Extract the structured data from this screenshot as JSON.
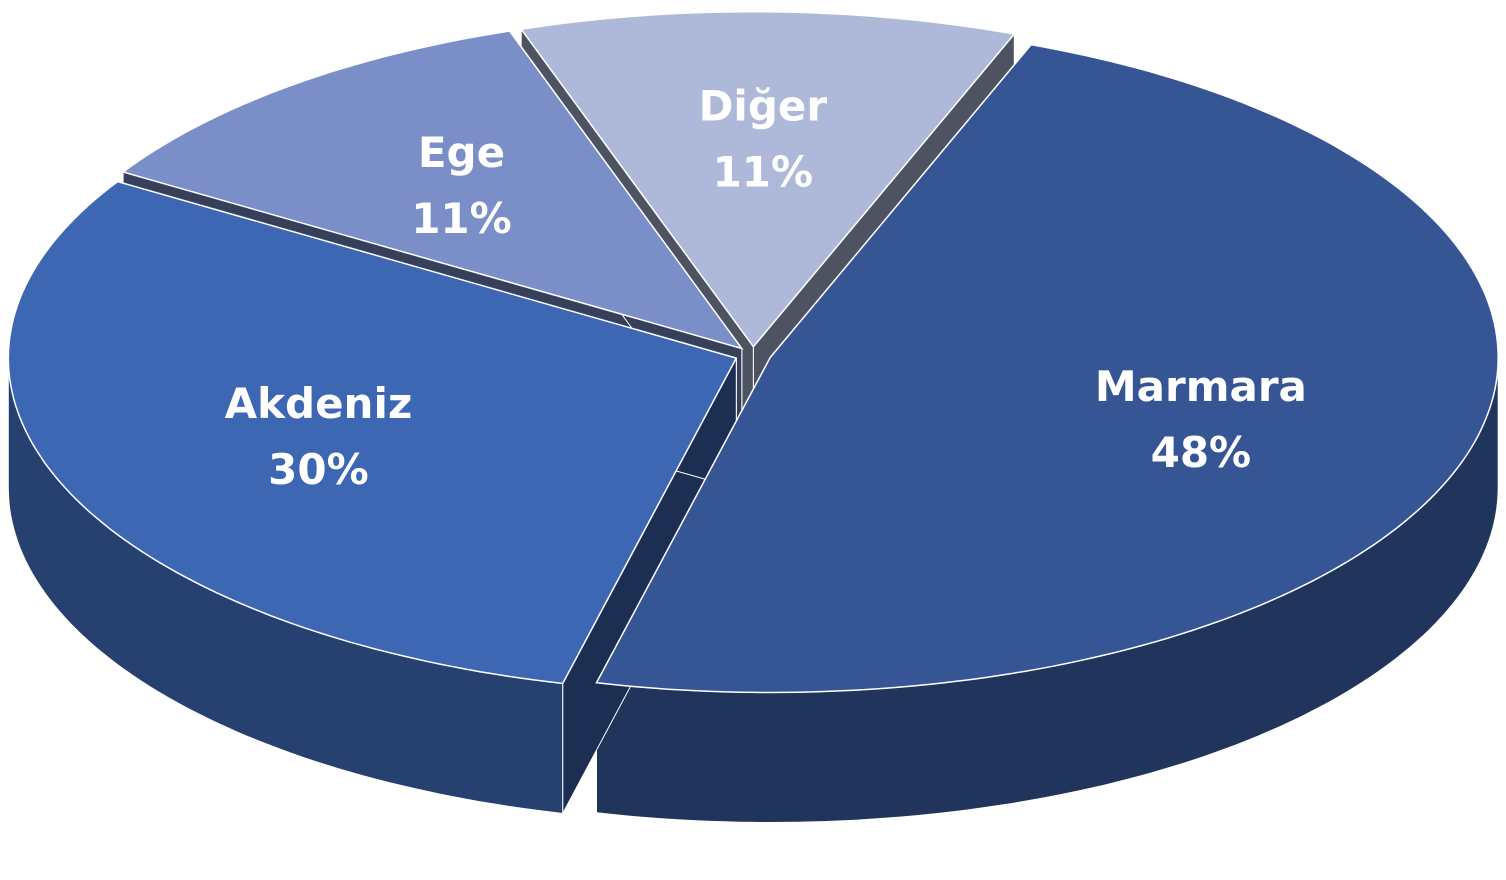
{
  "chart_data": {
    "type": "pie",
    "categories": [
      "Marmara",
      "Akdeniz",
      "Ege",
      "Diğer"
    ],
    "values": [
      48,
      30,
      11,
      11
    ],
    "value_labels": [
      "48%",
      "30%",
      "11%",
      "11%"
    ],
    "colors": [
      "#355595",
      "#3e67b3",
      "#7a8ec8",
      "#aeb9da"
    ]
  }
}
